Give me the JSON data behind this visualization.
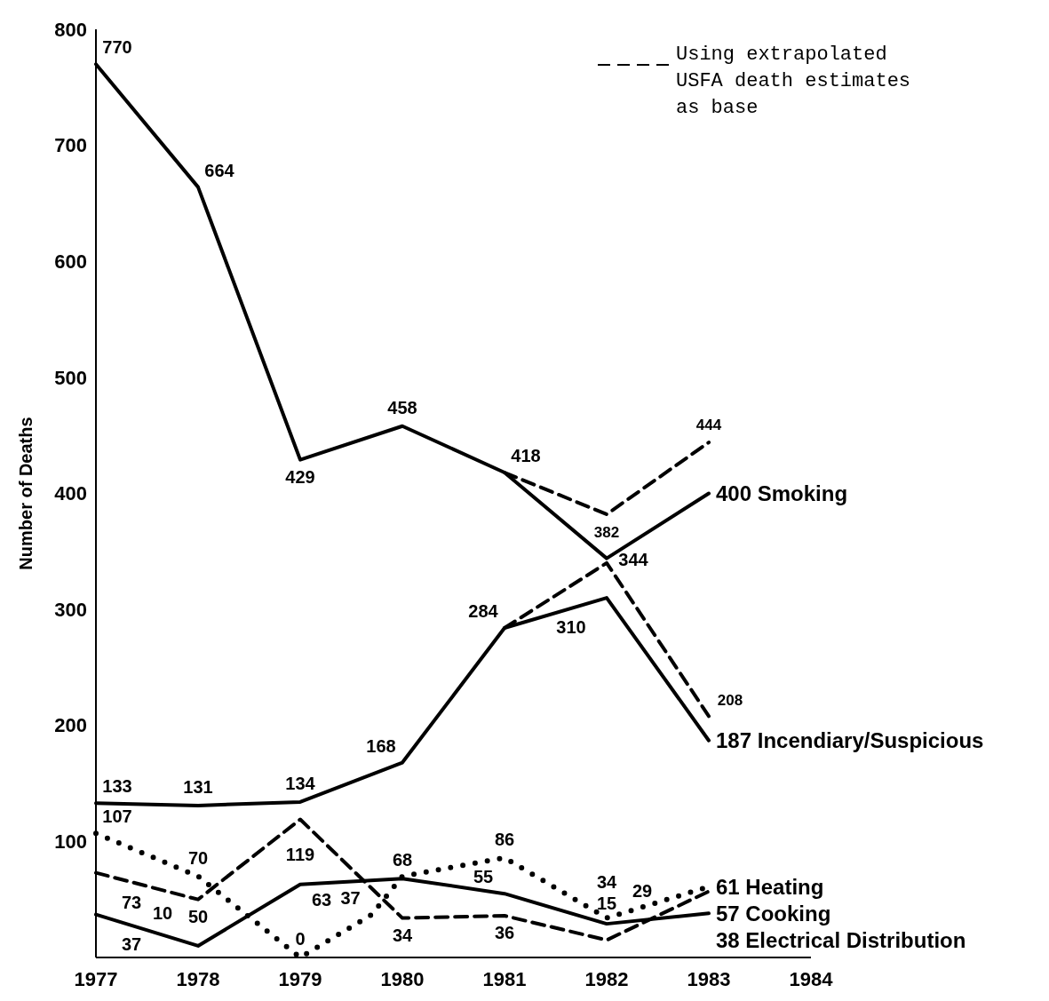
{
  "chart_data": {
    "type": "line",
    "ylabel": "Number of Deaths",
    "x": [
      1977,
      1978,
      1979,
      1980,
      1981,
      1982,
      1983
    ],
    "xlim": [
      1977,
      1984
    ],
    "xticks": [
      1977,
      1978,
      1979,
      1980,
      1981,
      1982,
      1983,
      1984
    ],
    "ylim": [
      0,
      800
    ],
    "yticks": [
      100,
      200,
      300,
      400,
      500,
      600,
      700,
      800
    ],
    "grid": false,
    "legend": "top right",
    "marker": "none",
    "series": [
      {
        "name": "Smoking",
        "color": "#000000",
        "line_style": "solid",
        "values": [
          770,
          664,
          429,
          458,
          418,
          344,
          400
        ],
        "value_labels": [
          "770",
          "664",
          "429",
          "458",
          "418",
          "344",
          "400"
        ]
      },
      {
        "name": "Incendiary/Suspicious",
        "color": "#000000",
        "line_style": "solid",
        "values": [
          133,
          131,
          134,
          168,
          284,
          310,
          187
        ],
        "value_labels": [
          "133",
          "131",
          "134",
          "168",
          "284",
          "310",
          "187"
        ]
      },
      {
        "name": "Heating",
        "color": "#000000",
        "line_style": "dotted",
        "x": [
          1977,
          1978,
          1979,
          1979.7,
          1980,
          1981,
          1982,
          1983
        ],
        "values": [
          107,
          70,
          0,
          37,
          70,
          86,
          34,
          61
        ],
        "value_labels": [
          "107",
          "70",
          "0",
          "37",
          null,
          "86",
          "34",
          "61"
        ]
      },
      {
        "name": "Cooking",
        "color": "#000000",
        "line_style": "dashed",
        "values": [
          73,
          50,
          119,
          34,
          36,
          15,
          57
        ],
        "value_labels": [
          "73",
          "50",
          "119",
          "34",
          "36",
          "15",
          "57"
        ]
      },
      {
        "name": "Electrical Distribution",
        "color": "#000000",
        "line_style": "solid",
        "values": [
          37,
          10,
          63,
          68,
          55,
          29,
          38
        ],
        "value_labels": [
          "37",
          "10",
          "63",
          "68",
          "55",
          "29",
          "38"
        ]
      },
      {
        "name": "Using extrapolated USFA death estimates as base",
        "color": "#000000",
        "line_style": "dashed",
        "x": [
          1981,
          1982,
          1983
        ],
        "values": [
          418,
          382,
          444
        ],
        "value_labels": [
          null,
          "382",
          "444"
        ]
      },
      {
        "color": "#000000",
        "line_style": "dashed",
        "x": [
          1981,
          1982,
          1983
        ],
        "values": [
          284,
          340,
          208
        ],
        "value_labels": [
          null,
          null,
          "208"
        ]
      }
    ]
  }
}
